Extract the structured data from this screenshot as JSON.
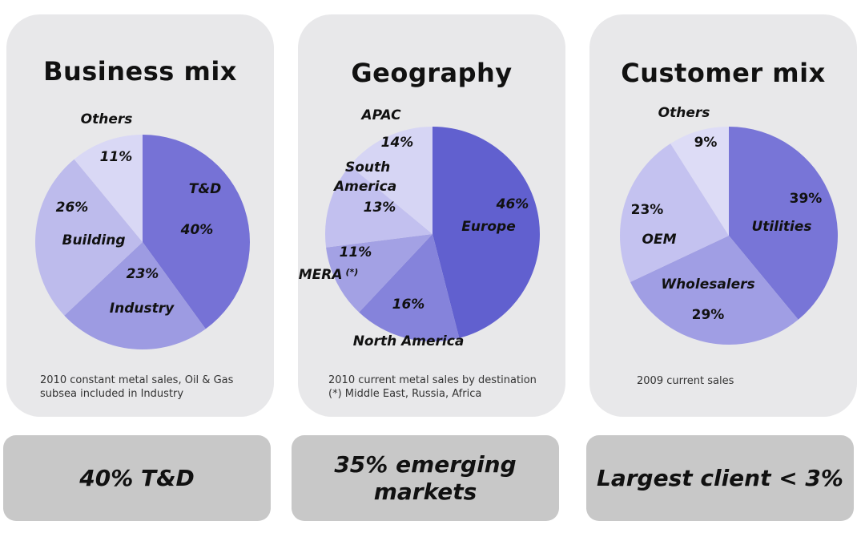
{
  "chart_data": [
    {
      "type": "pie",
      "title": "Business mix",
      "note": "2010 constant metal sales, Oil & Gas\nsubsea included in Industry",
      "slices": [
        {
          "label": "T&D",
          "value": 40,
          "value_label": "40%",
          "color": "#7672d6"
        },
        {
          "label": "Industry",
          "value": 23,
          "value_label": "23%",
          "color": "#9d9be2"
        },
        {
          "label": "Building",
          "value": 26,
          "value_label": "26%",
          "color": "#bdbbec"
        },
        {
          "label": "Others",
          "value": 11,
          "value_label": "11%",
          "color": "#d9d8f5"
        }
      ]
    },
    {
      "type": "pie",
      "title": "Geography",
      "note": "2010 current metal sales by destination\n(*) Middle East, Russia, Africa",
      "slices": [
        {
          "label": "Europe",
          "value": 46,
          "value_label": "46%",
          "color": "#6160cf"
        },
        {
          "label": "North America",
          "value": 16,
          "value_label": "16%",
          "color": "#8583db"
        },
        {
          "label": "MERA",
          "label_suffix": "(*)",
          "value": 11,
          "value_label": "11%",
          "color": "#a3a1e4"
        },
        {
          "label": "South America",
          "value": 13,
          "value_label": "13%",
          "color": "#c2c0ef"
        },
        {
          "label": "APAC",
          "value": 14,
          "value_label": "14%",
          "color": "#d6d5f4"
        }
      ]
    },
    {
      "type": "pie",
      "title": "Customer mix",
      "note": "2009 current sales",
      "slices": [
        {
          "label": "Utilities",
          "value": 39,
          "value_label": "39%",
          "color": "#7875d7"
        },
        {
          "label": "Wholesalers",
          "value": 29,
          "value_label": "29%",
          "color": "#a09ee4"
        },
        {
          "label": "OEM",
          "value": 23,
          "value_label": "23%",
          "color": "#c4c2f0"
        },
        {
          "label": "Others",
          "value": 9,
          "value_label": "9%",
          "color": "#dddcf6"
        }
      ]
    }
  ],
  "summaries": [
    "40% T&D",
    "35% emerging\nmarkets",
    "Largest client < 3%"
  ]
}
